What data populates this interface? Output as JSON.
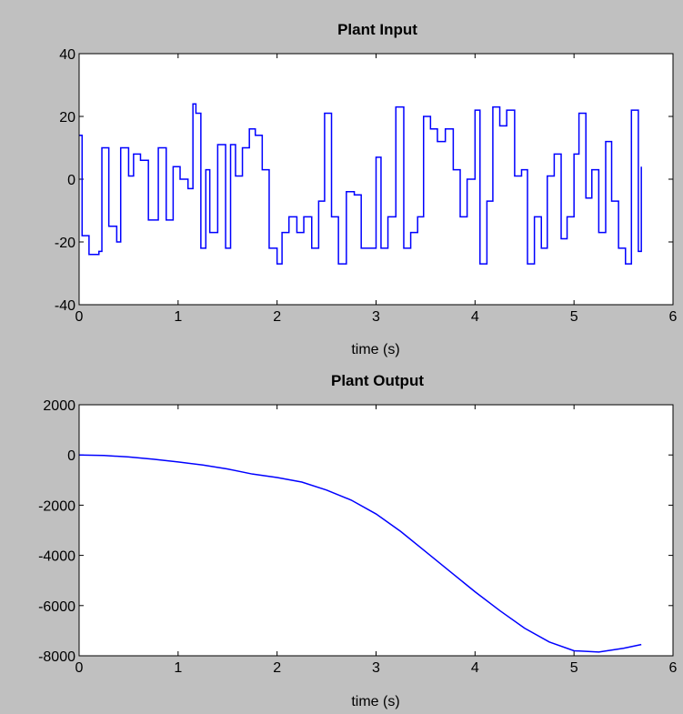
{
  "colors": {
    "figure_background": "#c0c0c0",
    "axes_background": "#ffffff",
    "line": "#0000ff",
    "axes": "#000000"
  },
  "chart_data": [
    {
      "type": "line",
      "title": "Plant Input",
      "xlabel": "time (s)",
      "ylabel": "",
      "xlim": [
        0,
        6
      ],
      "ylim": [
        -40,
        40
      ],
      "xticks": [
        0,
        1,
        2,
        3,
        4,
        5,
        6
      ],
      "yticks": [
        -40,
        -20,
        0,
        20,
        40
      ],
      "grid": false,
      "step": true,
      "series": [
        {
          "x": [
            0,
            0.03,
            0.1,
            0.2,
            0.23,
            0.3,
            0.38,
            0.42,
            0.5,
            0.55,
            0.62,
            0.7,
            0.8,
            0.88,
            0.95,
            1.02,
            1.1,
            1.15,
            1.18,
            1.23,
            1.28,
            1.32,
            1.4,
            1.48,
            1.53,
            1.58,
            1.65,
            1.72,
            1.78,
            1.85,
            1.92,
            2.0,
            2.05,
            2.12,
            2.2,
            2.27,
            2.35,
            2.42,
            2.48,
            2.55,
            2.62,
            2.7,
            2.78,
            2.85,
            2.92,
            3.0,
            3.05,
            3.12,
            3.2,
            3.28,
            3.35,
            3.42,
            3.48,
            3.55,
            3.62,
            3.7,
            3.78,
            3.85,
            3.92,
            4.0,
            4.05,
            4.12,
            4.18,
            4.25,
            4.32,
            4.4,
            4.47,
            4.53,
            4.6,
            4.67,
            4.73,
            4.8,
            4.87,
            4.93,
            5.0,
            5.05,
            5.12,
            5.18,
            5.25,
            5.32,
            5.38,
            5.45,
            5.52,
            5.58,
            5.65,
            5.68
          ],
          "y": [
            14,
            -18,
            -24,
            -23,
            10,
            -15,
            -20,
            10,
            1,
            8,
            6,
            -13,
            10,
            -13,
            4,
            0,
            -3,
            24,
            21,
            -22,
            3,
            -17,
            11,
            -22,
            11,
            1,
            10,
            16,
            14,
            3,
            -22,
            -27,
            -17,
            -12,
            -17,
            -12,
            -22,
            -7,
            21,
            -12,
            -27,
            -4,
            -5,
            -22,
            -22,
            7,
            -22,
            -12,
            23,
            -22,
            -17,
            -12,
            20,
            16,
            12,
            16,
            3,
            -12,
            0,
            22,
            -27,
            -7,
            23,
            17,
            22,
            1,
            3,
            -27,
            -12,
            -22,
            1,
            8,
            -19,
            -12,
            8,
            21,
            -6,
            3,
            -17,
            12,
            -7,
            -22,
            -27,
            22,
            -23,
            4
          ]
        }
      ]
    },
    {
      "type": "line",
      "title": "Plant Output",
      "xlabel": "time (s)",
      "ylabel": "",
      "xlim": [
        0,
        6
      ],
      "ylim": [
        -8000,
        2000
      ],
      "xticks": [
        0,
        1,
        2,
        3,
        4,
        5,
        6
      ],
      "yticks": [
        -8000,
        -6000,
        -4000,
        -2000,
        0,
        2000
      ],
      "grid": false,
      "series": [
        {
          "x": [
            0,
            0.25,
            0.5,
            0.75,
            1.0,
            1.25,
            1.5,
            1.75,
            2.0,
            2.25,
            2.5,
            2.75,
            3.0,
            3.25,
            3.5,
            3.75,
            4.0,
            4.25,
            4.5,
            4.75,
            5.0,
            5.25,
            5.5,
            5.68
          ],
          "y": [
            0,
            -20,
            -80,
            -170,
            -280,
            -400,
            -560,
            -760,
            -900,
            -1080,
            -1400,
            -1800,
            -2350,
            -3050,
            -3850,
            -4650,
            -5450,
            -6200,
            -6900,
            -7450,
            -7800,
            -7850,
            -7700,
            -7550
          ]
        }
      ]
    }
  ]
}
